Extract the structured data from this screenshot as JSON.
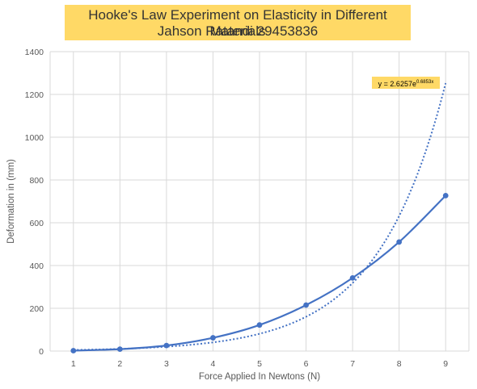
{
  "title": {
    "line1": "Hooke's Law Experiment on Elasticity in Different Materials",
    "line2": "Jahson Ratandi 29453836"
  },
  "colors": {
    "series": "#4472c4",
    "title_bg": "#ffd966",
    "grid": "#d9d9d9",
    "text": "#595959"
  },
  "chart_data": {
    "type": "line",
    "title": "Hooke's Law Experiment on Elasticity in Different Materials Jahson Ratandi 29453836",
    "xlabel": "Force Applied In Newtons (N)",
    "ylabel": "Deformation in (mm)",
    "xlim": [
      0.5,
      9.5
    ],
    "ylim": [
      0,
      1400
    ],
    "x_ticks": [
      1,
      2,
      3,
      4,
      5,
      6,
      7,
      8,
      9
    ],
    "y_ticks": [
      0,
      200,
      400,
      600,
      800,
      1000,
      1200,
      1400
    ],
    "grid": true,
    "series": [
      {
        "x": [
          1,
          2,
          3,
          4,
          5,
          6,
          7,
          8,
          9
        ],
        "values": [
          2,
          9,
          26,
          62,
          122,
          215,
          342,
          510,
          727
        ],
        "style": "solid line with markers",
        "color": "#4472c4"
      }
    ],
    "trendline": {
      "type": "exponential",
      "style": "dotted",
      "color": "#4472c4",
      "a": 2.6257,
      "b": 0.6853,
      "equation_base": "y = 2.6257e",
      "equation_exponent": "0.6853x",
      "label_position": "top-right"
    }
  }
}
